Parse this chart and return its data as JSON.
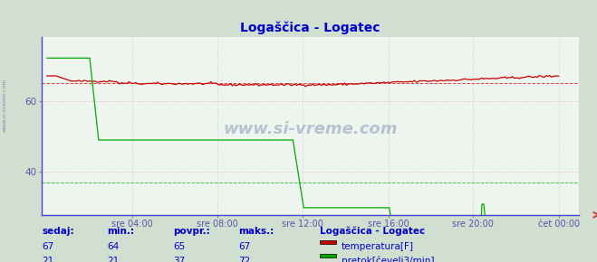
{
  "title": "Logaščica - Logatec",
  "title_color": "#0000cc",
  "bg_color": "#d0dfd0",
  "plot_bg_color": "#eef4ee",
  "xlabel_color": "#5555aa",
  "x_tick_labels": [
    "sre 04:00",
    "sre 08:00",
    "sre 12:00",
    "sre 16:00",
    "sre 20:00",
    "čet 00:00"
  ],
  "x_tick_positions": [
    0.167,
    0.333,
    0.5,
    0.667,
    0.833,
    1.0
  ],
  "y_ticks": [
    40,
    60
  ],
  "ylim_min": 28,
  "ylim_max": 78,
  "temp_color": "#cc0000",
  "flow_color": "#00aa00",
  "height_color": "#4444cc",
  "watermark": "www.si-vreme.com",
  "legend_title": "Logaščica - Logatec",
  "legend_labels": [
    "temperatura[F]",
    "pretok[čevelj3/min]"
  ],
  "legend_colors": [
    "#cc0000",
    "#00aa00"
  ],
  "stats_headers": [
    "sedaj:",
    "min.:",
    "povpr.:",
    "maks.:"
  ],
  "stats_temp": [
    67,
    64,
    65,
    67
  ],
  "stats_flow": [
    21,
    21,
    37,
    72
  ],
  "stats_color": "#0000cc",
  "n_points": 288,
  "sidebar_text": "www.si-vreme.com"
}
